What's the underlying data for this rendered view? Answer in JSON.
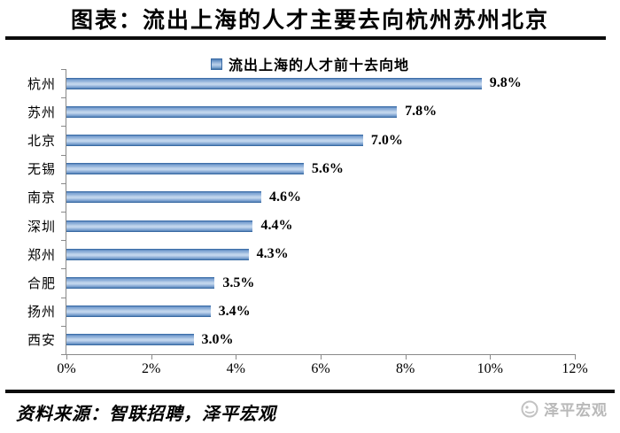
{
  "title": "图表：流出上海的人才主要去向杭州苏州北京",
  "legend": {
    "label": "流出上海的人才前十去向地",
    "swatch_color": "#4f81bd"
  },
  "chart_data": {
    "type": "bar",
    "orientation": "horizontal",
    "title": "流出上海的人才前十去向地",
    "categories": [
      "杭州",
      "苏州",
      "北京",
      "无锡",
      "南京",
      "深圳",
      "郑州",
      "合肥",
      "扬州",
      "西安"
    ],
    "values": [
      9.8,
      7.8,
      7.0,
      5.6,
      4.6,
      4.4,
      4.3,
      3.5,
      3.4,
      3.0
    ],
    "value_labels": [
      "9.8%",
      "7.8%",
      "7.0%",
      "5.6%",
      "4.6%",
      "4.4%",
      "4.3%",
      "3.5%",
      "3.4%",
      "3.0%"
    ],
    "xlabel": "",
    "ylabel": "",
    "xlim": [
      0,
      12
    ],
    "x_ticks": [
      "0%",
      "2%",
      "4%",
      "6%",
      "8%",
      "10%",
      "12%"
    ],
    "grid": false,
    "legend_position": "top",
    "bar_color": "#4f81bd",
    "axis_color": "#898989"
  },
  "footer": {
    "source": "资料来源：智联招聘，泽平宏观",
    "watermark": "泽平宏观"
  }
}
